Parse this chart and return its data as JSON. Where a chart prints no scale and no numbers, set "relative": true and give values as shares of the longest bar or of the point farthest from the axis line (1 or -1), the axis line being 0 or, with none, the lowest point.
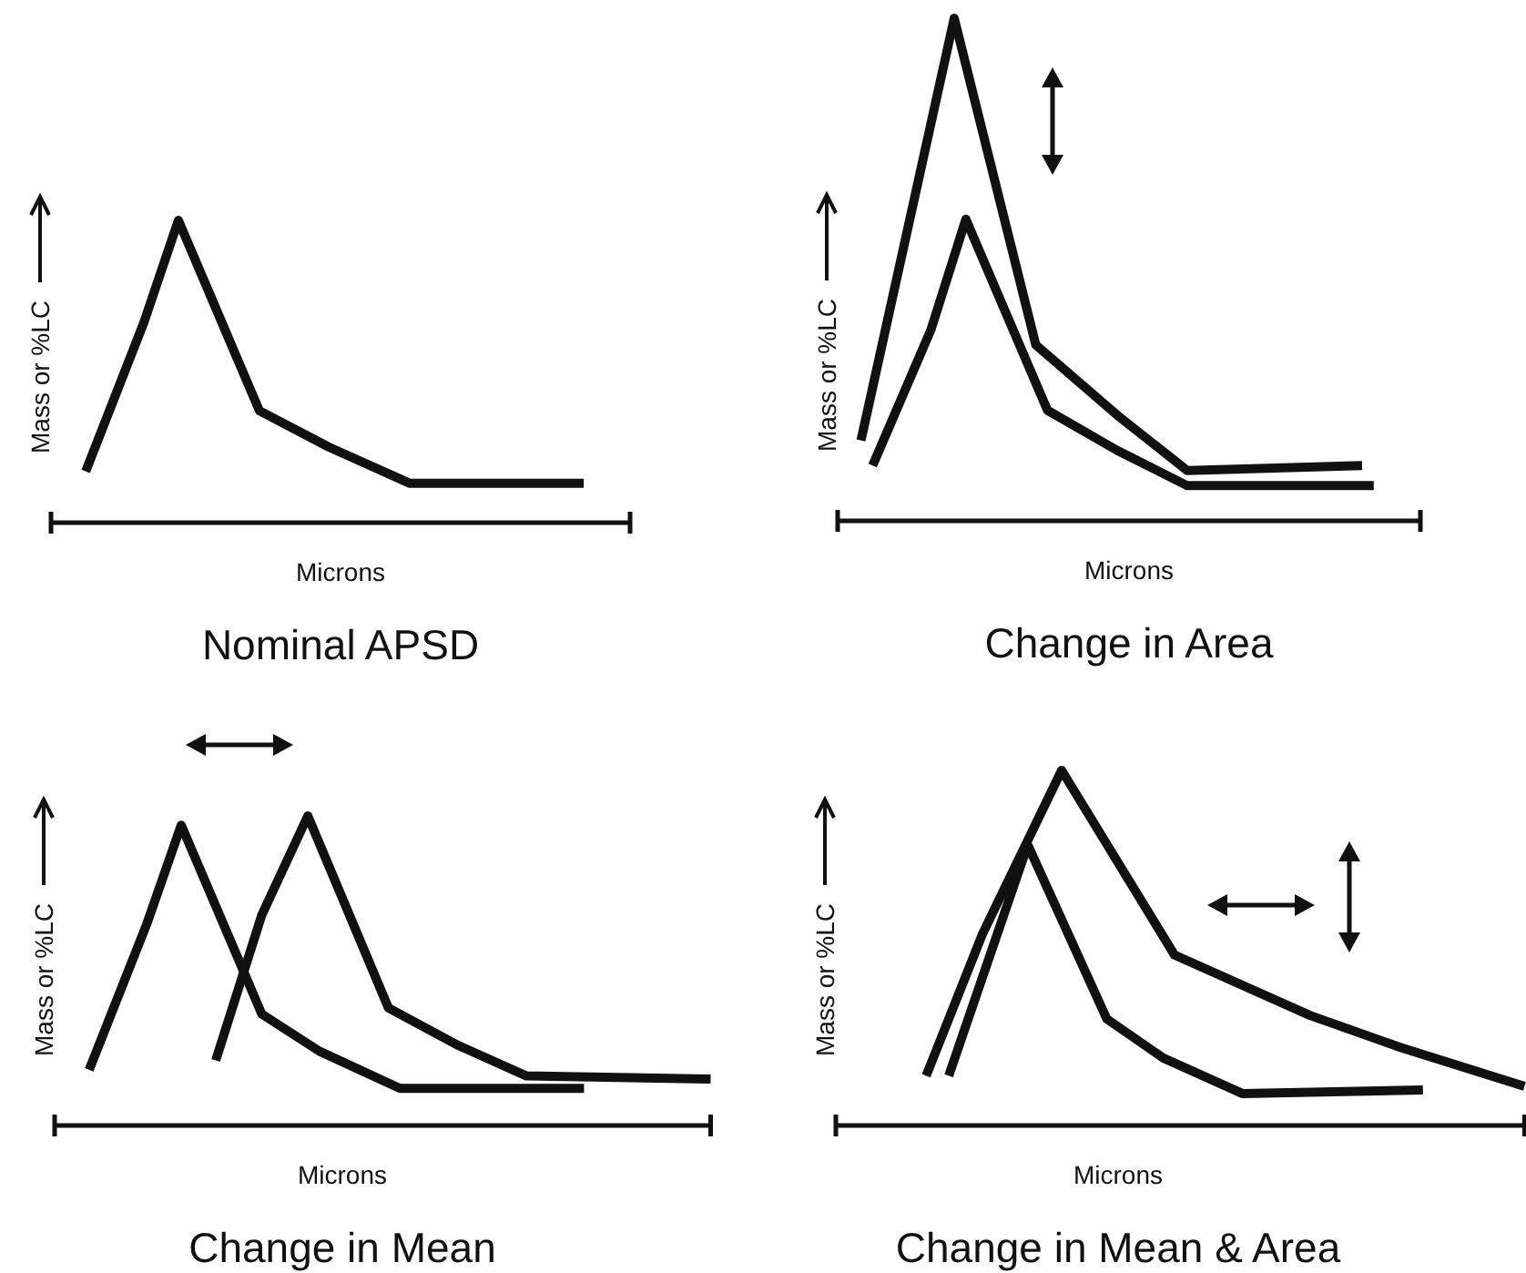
{
  "chart_data": [
    {
      "type": "line",
      "title": "Nominal APSD",
      "xlabel": "Microns",
      "ylabel": "Mass or %LC",
      "relative": true,
      "categories": [
        null,
        null,
        null,
        null,
        null,
        null,
        null,
        null,
        null,
        null,
        null,
        null,
        null,
        null,
        null,
        null,
        null,
        null,
        null,
        null,
        null,
        null,
        null,
        null,
        null,
        null,
        null,
        null,
        null,
        null,
        null,
        null,
        null,
        null,
        null,
        null,
        null,
        null,
        null,
        null,
        null,
        null,
        null,
        null,
        null,
        null,
        null,
        null,
        null,
        null,
        null
      ],
      "series": [
        {
          "color": "#111111",
          "values": [
            null,
            null,
            null,
            0.17,
            null,
            null,
            null,
            null,
            0.66,
            null,
            null,
            1,
            null,
            null,
            null,
            null,
            null,
            null,
            0.37,
            null,
            null,
            null,
            null,
            null,
            0.25,
            null,
            null,
            null,
            null,
            null,
            null,
            0.13,
            null,
            null,
            null,
            null,
            null,
            null,
            null,
            null,
            null,
            null,
            null,
            null,
            null,
            null,
            0.13,
            null,
            null,
            null,
            null
          ]
        }
      ]
    },
    {
      "type": "line",
      "title": "Change in Area",
      "xlabel": "Microns",
      "ylabel": "Mass or %LC",
      "relative": true,
      "categories": [
        null,
        null,
        null,
        null,
        null,
        null,
        null,
        null,
        null,
        null,
        null,
        null,
        null,
        null,
        null,
        null,
        null,
        null,
        null,
        null,
        null,
        null,
        null,
        null,
        null,
        null,
        null,
        null,
        null,
        null,
        null,
        null,
        null,
        null,
        null,
        null,
        null,
        null,
        null,
        null,
        null,
        null,
        null,
        null,
        null,
        null,
        null,
        null,
        null,
        null,
        null
      ],
      "series": [
        {
          "color": "#111111",
          "values": [
            null,
            null,
            0.16,
            null,
            null,
            null,
            null,
            null,
            null,
            null,
            1,
            null,
            null,
            null,
            null,
            null,
            null,
            0.35,
            null,
            null,
            null,
            null,
            null,
            null,
            0.21,
            null,
            null,
            null,
            null,
            null,
            0.1,
            null,
            null,
            null,
            null,
            null,
            null,
            null,
            null,
            null,
            null,
            null,
            null,
            null,
            null,
            0.11,
            null,
            null,
            null,
            null,
            null
          ]
        },
        {
          "color": "#111111",
          "values": [
            null,
            null,
            null,
            0.11,
            null,
            null,
            null,
            null,
            0.38,
            null,
            null,
            0.6,
            null,
            null,
            null,
            null,
            null,
            null,
            0.22,
            null,
            null,
            null,
            null,
            null,
            0.14,
            null,
            null,
            null,
            null,
            null,
            0.07,
            null,
            null,
            null,
            null,
            null,
            null,
            null,
            null,
            null,
            null,
            null,
            null,
            null,
            null,
            null,
            0.07,
            null,
            null,
            null,
            null
          ]
        }
      ]
    },
    {
      "type": "line",
      "title": "Change in Mean",
      "xlabel": "Microns",
      "ylabel": "Mass or %LC",
      "relative": true,
      "categories": [
        null,
        null,
        null,
        null,
        null,
        null,
        null,
        null,
        null,
        null,
        null,
        null,
        null,
        null,
        null,
        null,
        null,
        null,
        null,
        null,
        null,
        null,
        null,
        null,
        null,
        null,
        null,
        null,
        null,
        null,
        null,
        null,
        null,
        null,
        null,
        null,
        null,
        null,
        null,
        null,
        null,
        null,
        null,
        null,
        null,
        null,
        null,
        null,
        null,
        null,
        null,
        null,
        null,
        null,
        null,
        null,
        null,
        null
      ],
      "series": [
        {
          "color": "#111111",
          "values": [
            null,
            null,
            null,
            0.18,
            null,
            null,
            null,
            null,
            0.65,
            null,
            null,
            0.97,
            null,
            null,
            null,
            null,
            null,
            null,
            0.36,
            null,
            null,
            null,
            null,
            0.24,
            null,
            null,
            null,
            null,
            null,
            null,
            0.12,
            null,
            null,
            null,
            null,
            null,
            null,
            null,
            null,
            null,
            null,
            null,
            null,
            null,
            null,
            null,
            0.12,
            null,
            null,
            null,
            null,
            null,
            null,
            null,
            null,
            null,
            null,
            null
          ]
        },
        {
          "color": "#111111",
          "values": [
            null,
            null,
            null,
            null,
            null,
            null,
            null,
            null,
            null,
            null,
            null,
            null,
            null,
            null,
            0.21,
            null,
            null,
            null,
            0.68,
            null,
            null,
            null,
            1,
            null,
            null,
            null,
            null,
            null,
            null,
            0.38,
            null,
            null,
            null,
            null,
            null,
            0.26,
            null,
            null,
            null,
            null,
            null,
            0.16,
            null,
            null,
            null,
            null,
            null,
            null,
            null,
            null,
            null,
            null,
            null,
            null,
            null,
            null,
            null,
            0.15
          ]
        }
      ]
    },
    {
      "type": "line",
      "title": "Change in Mean & Area",
      "xlabel": "Microns",
      "ylabel": "Mass or %LC",
      "relative": true,
      "categories": [
        null,
        null,
        null,
        null,
        null,
        null,
        null,
        null,
        null,
        null,
        null,
        null,
        null,
        null,
        null,
        null,
        null,
        null,
        null,
        null,
        null,
        null,
        null,
        null,
        null,
        null,
        null,
        null,
        null,
        null,
        null,
        null,
        null,
        null,
        null,
        null,
        null,
        null,
        null,
        null,
        null,
        null,
        null,
        null,
        null,
        null,
        null,
        null,
        null,
        null,
        null,
        null,
        null,
        null,
        null,
        null,
        null,
        null,
        null,
        null,
        null,
        null
      ],
      "series": [
        {
          "color": "#111111",
          "values": [
            null,
            null,
            null,
            null,
            null,
            null,
            null,
            null,
            0.14,
            null,
            null,
            null,
            null,
            0.54,
            null,
            null,
            null,
            null,
            null,
            null,
            1,
            null,
            null,
            null,
            null,
            null,
            null,
            null,
            null,
            null,
            0.48,
            null,
            null,
            null,
            null,
            null,
            null,
            null,
            null,
            null,
            null,
            null,
            0.31,
            null,
            null,
            null,
            null,
            null,
            null,
            null,
            0.22,
            null,
            null,
            null,
            null,
            null,
            null,
            null,
            null,
            null,
            null,
            0.11
          ]
        },
        {
          "color": "#111111",
          "values": [
            null,
            null,
            null,
            null,
            null,
            null,
            null,
            null,
            null,
            null,
            0.14,
            null,
            null,
            null,
            null,
            null,
            null,
            0.79,
            null,
            null,
            null,
            null,
            null,
            null,
            0.3,
            null,
            null,
            null,
            null,
            0.19,
            null,
            null,
            null,
            null,
            null,
            null,
            0.09,
            null,
            null,
            null,
            null,
            null,
            null,
            null,
            null,
            null,
            null,
            null,
            null,
            null,
            null,
            null,
            0.1,
            null,
            null,
            null,
            null,
            null,
            null,
            null,
            null,
            null
          ]
        }
      ]
    }
  ]
}
